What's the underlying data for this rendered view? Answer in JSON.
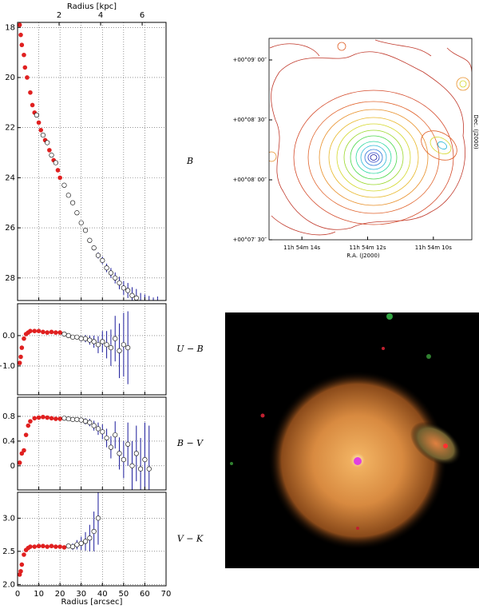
{
  "chart_data": [
    {
      "type": "scatter",
      "x2label": "Radius [kpc]",
      "x2lim": [
        0,
        7.15
      ],
      "x2ticks": [
        2,
        4,
        6
      ],
      "panel_label": "B",
      "xlim": [
        0,
        70
      ],
      "xticks": [
        0,
        10,
        20,
        30,
        40,
        50,
        60,
        70
      ],
      "ylim": [
        17.8,
        28.9
      ],
      "yinvert": true,
      "yticks": [
        18,
        20,
        22,
        24,
        26,
        28
      ],
      "grid": true,
      "series": [
        {
          "color": "#e02020",
          "x": [
            1,
            1.5,
            2,
            3,
            3.5,
            4.5,
            6,
            7,
            8,
            10,
            11,
            13,
            15,
            17,
            19,
            20
          ],
          "values": [
            17.9,
            18.3,
            18.7,
            19.1,
            19.6,
            20.0,
            20.6,
            21.1,
            21.4,
            21.8,
            22.1,
            22.5,
            22.9,
            23.3,
            23.7,
            24.0
          ]
        },
        {
          "color": "#ffffff",
          "edgecolor": "#000000",
          "errorcolor": "#1a1a9a",
          "x": [
            9,
            12,
            14,
            16,
            18,
            22,
            24,
            26,
            28,
            30,
            32,
            34,
            36,
            38,
            40,
            42,
            44,
            46,
            48,
            50,
            52,
            54,
            56,
            58,
            60,
            62,
            64,
            66
          ],
          "values": [
            21.5,
            22.3,
            22.6,
            23.1,
            23.4,
            24.3,
            24.7,
            25.0,
            25.4,
            25.8,
            26.1,
            26.5,
            26.8,
            27.1,
            27.3,
            27.6,
            27.8,
            28.0,
            28.2,
            28.4,
            28.5,
            28.7,
            28.8,
            29.0,
            29.1,
            29.2,
            29.3,
            29.3
          ],
          "errors": [
            0.02,
            0.02,
            0.02,
            0.03,
            0.03,
            0.04,
            0.05,
            0.05,
            0.06,
            0.07,
            0.08,
            0.09,
            0.1,
            0.12,
            0.15,
            0.17,
            0.2,
            0.22,
            0.25,
            0.28,
            0.3,
            0.33,
            0.36,
            0.4,
            0.44,
            0.48,
            0.52,
            0.56
          ]
        }
      ]
    },
    {
      "type": "scatter",
      "panel_label": "U − B",
      "xlim": [
        0,
        70
      ],
      "xticks": [
        0,
        10,
        20,
        30,
        40,
        50,
        60,
        70
      ],
      "ylim": [
        -1.95,
        1.05
      ],
      "yticks": [
        {
          "value": -1,
          "label": "−1.0"
        },
        {
          "value": 0,
          "label": "0.0"
        }
      ],
      "grid": true,
      "series": [
        {
          "color": "#e02020",
          "x": [
            1,
            1.5,
            2,
            3,
            4,
            5,
            6,
            8,
            10,
            12,
            14,
            16,
            18,
            20
          ],
          "values": [
            -0.9,
            -0.7,
            -0.4,
            -0.1,
            0.05,
            0.1,
            0.15,
            0.15,
            0.15,
            0.12,
            0.1,
            0.12,
            0.1,
            0.1
          ]
        },
        {
          "color": "#ffffff",
          "edgecolor": "#000000",
          "errorcolor": "#1a1a9a",
          "x": [
            22,
            24,
            26,
            28,
            30,
            32,
            34,
            36,
            38,
            40,
            42,
            44,
            46,
            48,
            50,
            52
          ],
          "values": [
            0.05,
            0.0,
            -0.05,
            -0.05,
            -0.1,
            -0.1,
            -0.15,
            -0.2,
            -0.3,
            -0.2,
            -0.3,
            -0.4,
            -0.1,
            -0.5,
            -0.3,
            -0.4
          ],
          "errors": [
            0.03,
            0.04,
            0.05,
            0.07,
            0.09,
            0.12,
            0.15,
            0.2,
            0.28,
            0.35,
            0.45,
            0.6,
            0.75,
            0.9,
            1.05,
            1.2
          ]
        }
      ]
    },
    {
      "type": "scatter",
      "panel_label": "B − V",
      "xlim": [
        0,
        70
      ],
      "xticks": [
        0,
        10,
        20,
        30,
        40,
        50,
        60,
        70
      ],
      "ylim": [
        -0.39,
        1.11
      ],
      "yticks": [
        0.0,
        0.4,
        0.8
      ],
      "grid": true,
      "series": [
        {
          "color": "#e02020",
          "x": [
            1,
            2,
            3,
            4,
            5,
            6,
            8,
            10,
            12,
            14,
            16,
            18,
            20
          ],
          "values": [
            0.05,
            0.2,
            0.25,
            0.5,
            0.65,
            0.72,
            0.77,
            0.78,
            0.79,
            0.78,
            0.77,
            0.76,
            0.76
          ]
        },
        {
          "color": "#ffffff",
          "edgecolor": "#000000",
          "errorcolor": "#1a1a9a",
          "x": [
            22,
            24,
            26,
            28,
            30,
            32,
            34,
            36,
            38,
            40,
            42,
            44,
            46,
            48,
            50,
            52,
            54,
            56,
            58,
            60,
            62
          ],
          "values": [
            0.77,
            0.76,
            0.75,
            0.75,
            0.74,
            0.72,
            0.7,
            0.65,
            0.6,
            0.55,
            0.45,
            0.3,
            0.5,
            0.2,
            0.1,
            0.35,
            0.0,
            0.2,
            -0.05,
            0.1,
            -0.05
          ],
          "errors": [
            0.02,
            0.02,
            0.03,
            0.03,
            0.04,
            0.05,
            0.06,
            0.08,
            0.1,
            0.12,
            0.15,
            0.18,
            0.22,
            0.26,
            0.3,
            0.35,
            0.4,
            0.45,
            0.5,
            0.6,
            0.7
          ]
        }
      ]
    },
    {
      "type": "scatter",
      "panel_label": "V − K",
      "xlabel": "Radius [arcsec]",
      "xticklabels": true,
      "xlim": [
        0,
        70
      ],
      "xticks": [
        0,
        10,
        20,
        30,
        40,
        50,
        60,
        70
      ],
      "ylim": [
        1.98,
        3.39
      ],
      "yticks": [
        {
          "value": 2,
          "label": "2.0"
        },
        2.5,
        {
          "value": 3,
          "label": "3.0"
        }
      ],
      "grid": true,
      "series": [
        {
          "color": "#e02020",
          "x": [
            1,
            1.5,
            2,
            3,
            4,
            5,
            6,
            8,
            10,
            12,
            14,
            16,
            18,
            20,
            22
          ],
          "values": [
            2.15,
            2.2,
            2.3,
            2.45,
            2.52,
            2.55,
            2.57,
            2.57,
            2.58,
            2.58,
            2.57,
            2.58,
            2.57,
            2.57,
            2.56
          ]
        },
        {
          "color": "#ffffff",
          "edgecolor": "#000000",
          "errorcolor": "#1a1a9a",
          "x": [
            24,
            26,
            28,
            30,
            32,
            34,
            36,
            38
          ],
          "values": [
            2.58,
            2.57,
            2.6,
            2.62,
            2.65,
            2.7,
            2.8,
            3.0
          ],
          "errors": [
            0.03,
            0.05,
            0.07,
            0.1,
            0.14,
            0.2,
            0.3,
            0.4
          ]
        }
      ]
    },
    {
      "type": "contour",
      "xlabel": "R.A. (J2000)",
      "ylabel": "Dec. (J2000)",
      "xlim": [
        15.0,
        8.83
      ],
      "xticks": [
        {
          "value": 14,
          "label": "11h 54m 14s"
        },
        {
          "value": 12,
          "label": "11h 54m 12s"
        },
        {
          "value": 10,
          "label": "11h 54m 10s"
        }
      ],
      "ylim": [
        -30,
        70.8
      ],
      "yticks": [
        {
          "value": -30,
          "label": "+00°07′ 30″"
        },
        {
          "value": 0,
          "label": "+00°08′ 00″"
        },
        {
          "value": 30,
          "label": "+00°08′ 30″"
        },
        {
          "value": 60,
          "label": "+00°09′ 00″"
        }
      ]
    }
  ]
}
